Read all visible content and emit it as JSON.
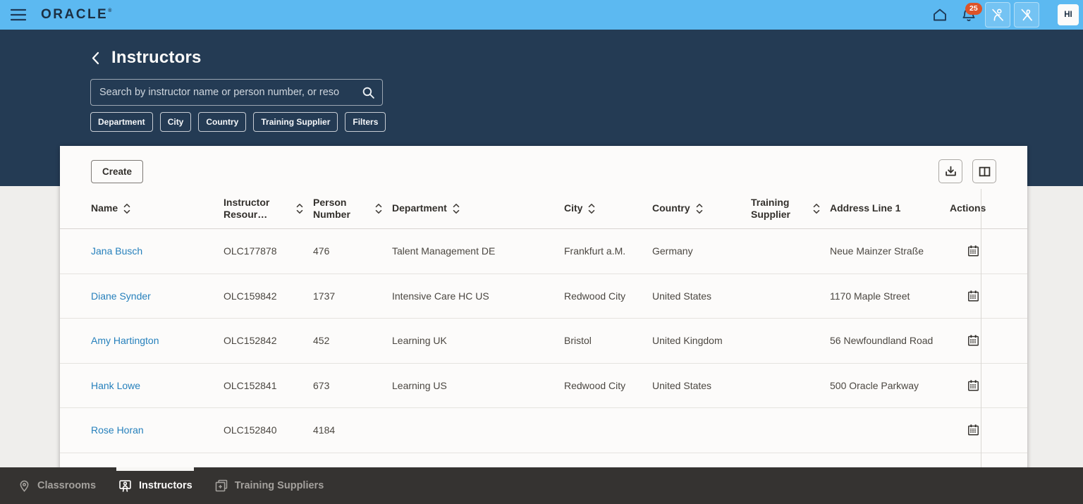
{
  "topbar": {
    "brand": "ORACLE",
    "brand_mark": "®",
    "notification_count": "25",
    "avatar_initials": "HI"
  },
  "hero": {
    "title": "Instructors",
    "search_placeholder": "Search by instructor name or person number, or reso",
    "filter_chips": [
      "Department",
      "City",
      "Country",
      "Training Supplier",
      "Filters"
    ]
  },
  "toolbar": {
    "create_label": "Create"
  },
  "table": {
    "columns": [
      {
        "label": "Name",
        "sortable": true
      },
      {
        "label": "Instructor Resour…",
        "sortable": true
      },
      {
        "label": "Person Number",
        "sortable": true
      },
      {
        "label": "Department",
        "sortable": true
      },
      {
        "label": "City",
        "sortable": true
      },
      {
        "label": "Country",
        "sortable": true
      },
      {
        "label": "Training Supplier",
        "sortable": true
      },
      {
        "label": "Address Line 1",
        "sortable": false
      },
      {
        "label": "Actions",
        "sortable": false
      }
    ],
    "rows": [
      {
        "name": "Jana Busch",
        "instructor_resource": "OLC177878",
        "person_number": "476",
        "department": "Talent Management DE",
        "city": "Frankfurt a.M.",
        "country": "Germany",
        "training_supplier": "",
        "address_line_1": "Neue Mainzer Straße"
      },
      {
        "name": "Diane Synder",
        "instructor_resource": "OLC159842",
        "person_number": "1737",
        "department": "Intensive Care HC US",
        "city": "Redwood City",
        "country": "United States",
        "training_supplier": "",
        "address_line_1": "1170 Maple Street"
      },
      {
        "name": "Amy Hartington",
        "instructor_resource": "OLC152842",
        "person_number": "452",
        "department": "Learning UK",
        "city": "Bristol",
        "country": "United Kingdom",
        "training_supplier": "",
        "address_line_1": "56 Newfoundland Road"
      },
      {
        "name": "Hank Lowe",
        "instructor_resource": "OLC152841",
        "person_number": "673",
        "department": "Learning US",
        "city": "Redwood City",
        "country": "United States",
        "training_supplier": "",
        "address_line_1": "500 Oracle Parkway"
      },
      {
        "name": "Rose Horan",
        "instructor_resource": "OLC152840",
        "person_number": "4184",
        "department": "",
        "city": "",
        "country": "",
        "training_supplier": "",
        "address_line_1": ""
      }
    ]
  },
  "tabbar": {
    "tabs": [
      {
        "label": "Classrooms",
        "icon": "location-pin",
        "active": false
      },
      {
        "label": "Instructors",
        "icon": "instructor-board",
        "active": true
      },
      {
        "label": "Training Suppliers",
        "icon": "training-suppliers",
        "active": false
      }
    ]
  },
  "colors": {
    "topbar_blue": "#5CB9F1",
    "header_navy": "#243B54",
    "badge_orange": "#DD5429",
    "link_blue": "#2680BC",
    "tabbar_dark": "#353331",
    "card_background": "#FCFBFA"
  }
}
